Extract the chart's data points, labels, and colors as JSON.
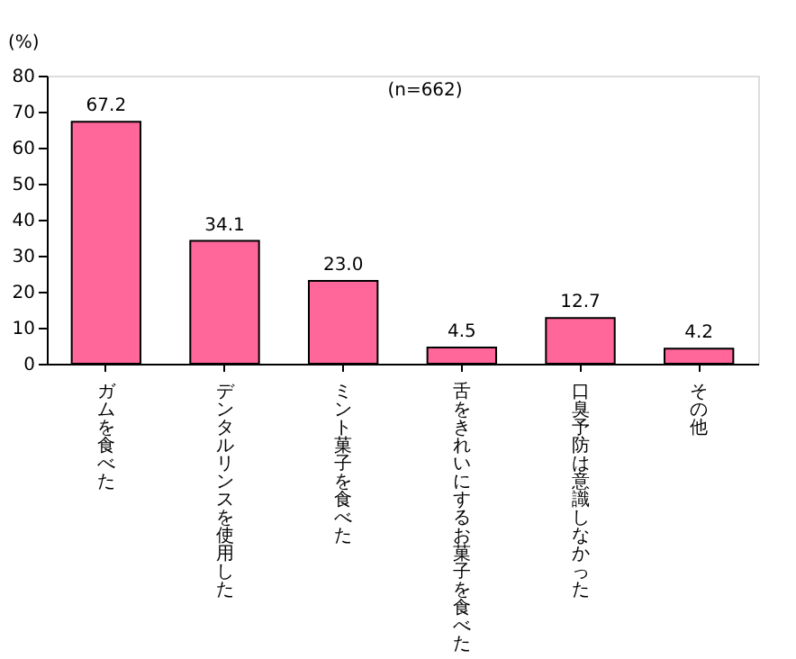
{
  "chart_data": {
    "type": "bar",
    "ylabel": "(%)",
    "annotations": [
      "(n=662)"
    ],
    "categories": [
      "ガムを食べた",
      "デンタルリンスを使用した",
      "ミント菓子を食べた",
      "舌をきれいにするお菓子を食べた",
      "口臭予防は意識しなかった",
      "その他"
    ],
    "values": [
      67.2,
      34.1,
      23.0,
      4.5,
      12.7,
      4.2
    ],
    "color": "#ff6699",
    "ylim": [
      0,
      80
    ],
    "yticks": [
      0,
      10,
      20,
      30,
      40,
      50,
      60,
      70,
      80
    ],
    "value_labels": [
      "67.2",
      "34.1",
      "23.0",
      "4.5",
      "12.7",
      "4.2"
    ],
    "grid": false
  }
}
